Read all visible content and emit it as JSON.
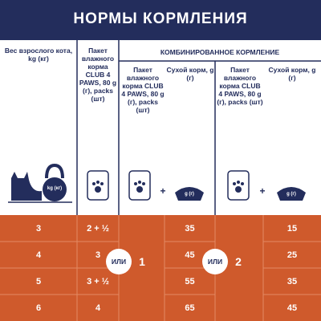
{
  "header": {
    "title": "НОРМЫ КОРМЛЕНИЯ"
  },
  "table": {
    "columns": [
      "Вес взрослого кота, kg (кг)",
      "Пакет влажного корма CLUB 4 PAWS, 80 g (г), packs (шт)"
    ],
    "group": {
      "title": "КОМБИНИРОВАННОЕ КОРМЛЕНИЕ",
      "columns": [
        "Пакет влажного корма CLUB 4 PAWS, 80 g (г), packs (шт)",
        "Сухой корм, g (г)",
        "Пакет влажного корма CLUB 4 PAWS, 80 g (г), packs (шт)",
        "Сухой корм, g (г)"
      ]
    },
    "icons": {
      "kettlebell": "kg (кг)",
      "bowl": "g (г)",
      "plus": "+"
    },
    "rows": [
      [
        3,
        "2 + ½",
        35,
        15
      ],
      [
        4,
        3,
        45,
        25
      ],
      [
        5,
        "3 + ½",
        55,
        35
      ],
      [
        6,
        4,
        65,
        45
      ]
    ],
    "options": [
      {
        "label": "ИЛИ",
        "number": 1
      },
      {
        "label": "ИЛИ",
        "number": 2
      }
    ]
  }
}
